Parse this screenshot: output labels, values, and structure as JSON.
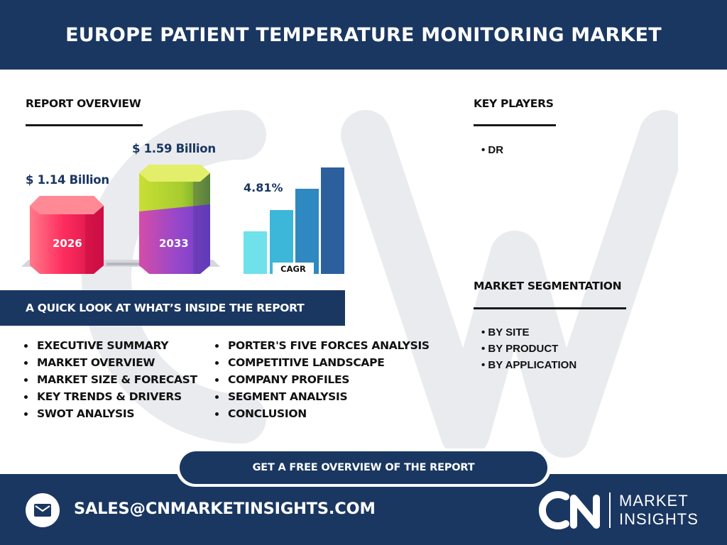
{
  "header": {
    "title": "EUROPE PATIENT TEMPERATURE MONITORING MARKET"
  },
  "overview": {
    "title": "REPORT OVERVIEW",
    "value_2026": "$ 1.14 Billion",
    "year_2026": "2026",
    "value_2033": "$ 1.59 Billion",
    "year_2033": "2033",
    "cagr_value": "4.81%",
    "cagr_label": "CAGR"
  },
  "quick_look": {
    "title": "A QUICK LOOK AT WHAT’S INSIDE THE REPORT",
    "col1": [
      "EXECUTIVE SUMMARY",
      "MARKET OVERVIEW",
      "MARKET SIZE & FORECAST",
      "KEY TRENDS & DRIVERS",
      "SWOT ANALYSIS"
    ],
    "col2": [
      "PORTER'S FIVE FORCES ANALYSIS",
      "COMPETITIVE LANDSCAPE",
      "COMPANY PROFILES",
      "SEGMENT ANALYSIS",
      "CONCLUSION"
    ]
  },
  "key_players": {
    "title": "KEY PLAYERS",
    "items": [
      "• DR"
    ]
  },
  "segmentation": {
    "title": "MARKET SEGMENTATION",
    "items": [
      "• BY SITE",
      "• BY PRODUCT",
      "• BY APPLICATION"
    ]
  },
  "cta": {
    "label": "GET A FREE OVERVIEW OF THE REPORT"
  },
  "footer": {
    "email": "SALES@CNMARKETINSIGHTS.COM",
    "logo_line1": "MARKET",
    "logo_line2": "INSIGHTS"
  },
  "colors": {
    "navy": "#1a3761",
    "watermark": "#e9ebef"
  },
  "icons": {
    "mail": "mail-icon",
    "logo": "cn-logo"
  }
}
